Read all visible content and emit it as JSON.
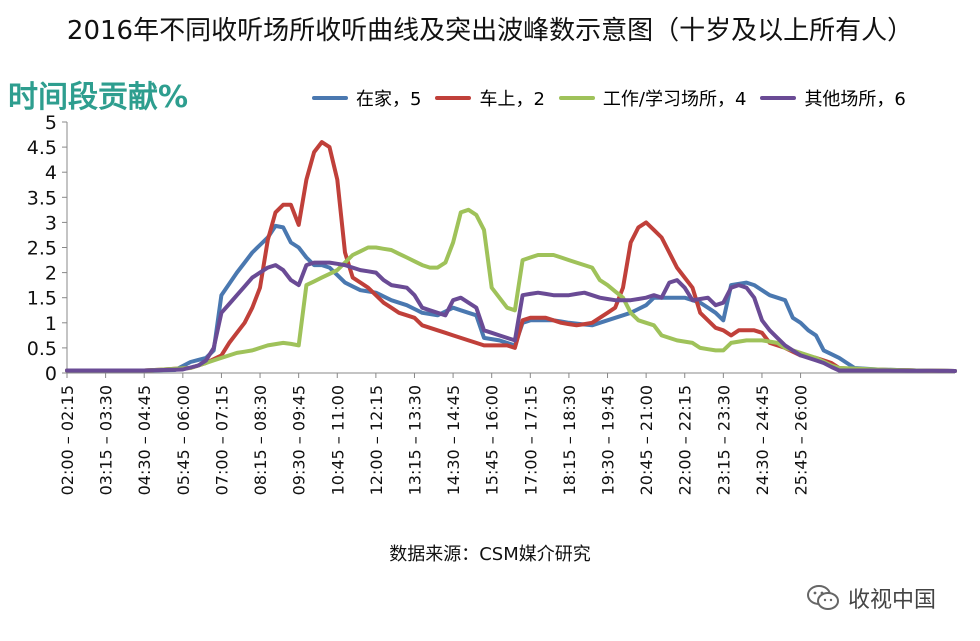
{
  "title": "2016年不同收听场所收听曲线及突出波峰数示意图（十岁及以上所有人）",
  "source": "数据来源：CSM媒介研究",
  "watermark": {
    "text": "收视中国",
    "icon": "wechat-icon"
  },
  "chart_data": {
    "type": "line",
    "title": "2016年不同收听场所收听曲线及突出波峰数示意图（十岁及以上所有人）",
    "ylabel": "时间段贡献%",
    "xlabel": "",
    "ylim": [
      0,
      5
    ],
    "yticks": [
      "0",
      "0.5",
      "1",
      "1.5",
      "2",
      "2.5",
      "3",
      "3.5",
      "4",
      "4.5",
      "5"
    ],
    "grid": false,
    "legend_position": "top",
    "x_tick_labels": [
      "02:00 – 02:15",
      "03:15 – 03:30",
      "04:30 – 04:45",
      "05:45 – 06:00",
      "07:00 – 07:15",
      "08:15 – 08:30",
      "09:30 – 09:45",
      "10:45 – 11:00",
      "12:00 – 12:15",
      "13:15 – 13:30",
      "14:30 – 14:45",
      "15:45 – 16:00",
      "17:00 – 17:15",
      "18:15 – 18:30",
      "19:30 – 19:45",
      "20:45 – 21:00",
      "22:00 – 22:15",
      "23:15 – 23:30",
      "24:30 – 24:45",
      "25:45 – 26:00"
    ],
    "x_tick_step": 5,
    "n_points": 96,
    "series": [
      {
        "name": "在家，5",
        "color": "#4a78b0",
        "anchors": [
          [
            0,
            0.05
          ],
          [
            5,
            0.05
          ],
          [
            10,
            0.05
          ],
          [
            14,
            0.06
          ],
          [
            16,
            0.22
          ],
          [
            18,
            0.3
          ],
          [
            19,
            0.45
          ],
          [
            20,
            1.55
          ],
          [
            22,
            2.0
          ],
          [
            24,
            2.4
          ],
          [
            26,
            2.7
          ],
          [
            27,
            2.93
          ],
          [
            28,
            2.9
          ],
          [
            29,
            2.6
          ],
          [
            30,
            2.5
          ],
          [
            31,
            2.3
          ],
          [
            32,
            2.15
          ],
          [
            33,
            2.15
          ],
          [
            34,
            2.1
          ],
          [
            35,
            1.95
          ],
          [
            36,
            1.8
          ],
          [
            38,
            1.65
          ],
          [
            40,
            1.6
          ],
          [
            42,
            1.45
          ],
          [
            44,
            1.35
          ],
          [
            46,
            1.2
          ],
          [
            48,
            1.15
          ],
          [
            50,
            1.3
          ],
          [
            51,
            1.25
          ],
          [
            53,
            1.15
          ],
          [
            54,
            0.7
          ],
          [
            56,
            0.65
          ],
          [
            58,
            0.55
          ],
          [
            59,
            1.0
          ],
          [
            60,
            1.05
          ],
          [
            63,
            1.05
          ],
          [
            65,
            1.0
          ],
          [
            68,
            0.95
          ],
          [
            70,
            1.05
          ],
          [
            73,
            1.2
          ],
          [
            75,
            1.35
          ],
          [
            76,
            1.5
          ],
          [
            78,
            1.5
          ],
          [
            80,
            1.5
          ],
          [
            82,
            1.4
          ],
          [
            83,
            1.3
          ],
          [
            84,
            1.2
          ],
          [
            85,
            1.05
          ],
          [
            86,
            1.75
          ],
          [
            88,
            1.8
          ],
          [
            89,
            1.75
          ],
          [
            90,
            1.65
          ],
          [
            91,
            1.55
          ],
          [
            93,
            1.45
          ],
          [
            94,
            1.1
          ],
          [
            95,
            1.0
          ],
          [
            96,
            0.85
          ],
          [
            97,
            0.75
          ],
          [
            98,
            0.45
          ],
          [
            100,
            0.3
          ],
          [
            101,
            0.2
          ],
          [
            102,
            0.1
          ],
          [
            105,
            0.07
          ],
          [
            110,
            0.05
          ],
          [
            115,
            0.04
          ]
        ]
      },
      {
        "name": "车上，2",
        "color": "#c0403a",
        "anchors": [
          [
            0,
            0.05
          ],
          [
            10,
            0.05
          ],
          [
            16,
            0.1
          ],
          [
            18,
            0.2
          ],
          [
            20,
            0.35
          ],
          [
            21,
            0.6
          ],
          [
            23,
            1.0
          ],
          [
            24,
            1.3
          ],
          [
            25,
            1.7
          ],
          [
            26,
            2.65
          ],
          [
            27,
            3.2
          ],
          [
            28,
            3.35
          ],
          [
            29,
            3.35
          ],
          [
            30,
            2.95
          ],
          [
            31,
            3.85
          ],
          [
            32,
            4.4
          ],
          [
            33,
            4.6
          ],
          [
            34,
            4.5
          ],
          [
            35,
            3.85
          ],
          [
            36,
            2.4
          ],
          [
            37,
            1.9
          ],
          [
            39,
            1.7
          ],
          [
            41,
            1.4
          ],
          [
            43,
            1.2
          ],
          [
            45,
            1.1
          ],
          [
            46,
            0.95
          ],
          [
            48,
            0.85
          ],
          [
            50,
            0.75
          ],
          [
            52,
            0.65
          ],
          [
            54,
            0.55
          ],
          [
            57,
            0.55
          ],
          [
            58,
            0.5
          ],
          [
            59,
            1.05
          ],
          [
            60,
            1.1
          ],
          [
            62,
            1.1
          ],
          [
            64,
            1.0
          ],
          [
            66,
            0.95
          ],
          [
            68,
            1.0
          ],
          [
            70,
            1.2
          ],
          [
            71,
            1.3
          ],
          [
            72,
            1.7
          ],
          [
            73,
            2.6
          ],
          [
            74,
            2.9
          ],
          [
            75,
            3.0
          ],
          [
            76,
            2.85
          ],
          [
            77,
            2.7
          ],
          [
            78,
            2.4
          ],
          [
            79,
            2.1
          ],
          [
            80,
            1.9
          ],
          [
            81,
            1.7
          ],
          [
            82,
            1.2
          ],
          [
            83,
            1.05
          ],
          [
            84,
            0.9
          ],
          [
            85,
            0.85
          ],
          [
            86,
            0.75
          ],
          [
            87,
            0.85
          ],
          [
            89,
            0.85
          ],
          [
            90,
            0.8
          ],
          [
            91,
            0.6
          ],
          [
            93,
            0.5
          ],
          [
            95,
            0.35
          ],
          [
            97,
            0.3
          ],
          [
            99,
            0.2
          ],
          [
            100,
            0.1
          ],
          [
            103,
            0.07
          ],
          [
            110,
            0.05
          ],
          [
            115,
            0.04
          ]
        ]
      },
      {
        "name": "工作/学习场所，4",
        "color": "#9fc25a",
        "anchors": [
          [
            0,
            0.05
          ],
          [
            10,
            0.05
          ],
          [
            16,
            0.1
          ],
          [
            18,
            0.2
          ],
          [
            20,
            0.3
          ],
          [
            22,
            0.4
          ],
          [
            24,
            0.45
          ],
          [
            26,
            0.55
          ],
          [
            28,
            0.6
          ],
          [
            29,
            0.58
          ],
          [
            30,
            0.55
          ],
          [
            31,
            1.75
          ],
          [
            33,
            1.9
          ],
          [
            35,
            2.05
          ],
          [
            37,
            2.35
          ],
          [
            39,
            2.5
          ],
          [
            40,
            2.5
          ],
          [
            42,
            2.45
          ],
          [
            44,
            2.3
          ],
          [
            46,
            2.15
          ],
          [
            47,
            2.1
          ],
          [
            48,
            2.1
          ],
          [
            49,
            2.2
          ],
          [
            50,
            2.6
          ],
          [
            51,
            3.2
          ],
          [
            52,
            3.25
          ],
          [
            53,
            3.15
          ],
          [
            54,
            2.85
          ],
          [
            55,
            1.7
          ],
          [
            56,
            1.5
          ],
          [
            57,
            1.3
          ],
          [
            58,
            1.25
          ],
          [
            59,
            2.25
          ],
          [
            61,
            2.35
          ],
          [
            63,
            2.35
          ],
          [
            65,
            2.25
          ],
          [
            67,
            2.15
          ],
          [
            68,
            2.1
          ],
          [
            69,
            1.85
          ],
          [
            70,
            1.75
          ],
          [
            72,
            1.5
          ],
          [
            73,
            1.2
          ],
          [
            74,
            1.05
          ],
          [
            76,
            0.95
          ],
          [
            77,
            0.75
          ],
          [
            79,
            0.65
          ],
          [
            81,
            0.6
          ],
          [
            82,
            0.5
          ],
          [
            84,
            0.45
          ],
          [
            85,
            0.45
          ],
          [
            86,
            0.6
          ],
          [
            88,
            0.65
          ],
          [
            90,
            0.65
          ],
          [
            92,
            0.6
          ],
          [
            93,
            0.5
          ],
          [
            95,
            0.4
          ],
          [
            97,
            0.3
          ],
          [
            99,
            0.15
          ],
          [
            100,
            0.1
          ],
          [
            105,
            0.07
          ],
          [
            110,
            0.05
          ],
          [
            115,
            0.04
          ]
        ]
      },
      {
        "name": "其他场所，6",
        "color": "#6a4b95",
        "anchors": [
          [
            0,
            0.05
          ],
          [
            10,
            0.05
          ],
          [
            15,
            0.07
          ],
          [
            17,
            0.15
          ],
          [
            18,
            0.25
          ],
          [
            19,
            0.5
          ],
          [
            20,
            1.2
          ],
          [
            22,
            1.55
          ],
          [
            24,
            1.9
          ],
          [
            26,
            2.1
          ],
          [
            27,
            2.15
          ],
          [
            28,
            2.05
          ],
          [
            29,
            1.85
          ],
          [
            30,
            1.75
          ],
          [
            31,
            2.15
          ],
          [
            32,
            2.2
          ],
          [
            34,
            2.2
          ],
          [
            36,
            2.15
          ],
          [
            38,
            2.05
          ],
          [
            40,
            2.0
          ],
          [
            41,
            1.85
          ],
          [
            42,
            1.75
          ],
          [
            44,
            1.7
          ],
          [
            45,
            1.55
          ],
          [
            46,
            1.3
          ],
          [
            48,
            1.2
          ],
          [
            49,
            1.15
          ],
          [
            50,
            1.45
          ],
          [
            51,
            1.5
          ],
          [
            53,
            1.3
          ],
          [
            54,
            0.85
          ],
          [
            56,
            0.75
          ],
          [
            58,
            0.65
          ],
          [
            59,
            1.55
          ],
          [
            61,
            1.6
          ],
          [
            63,
            1.55
          ],
          [
            65,
            1.55
          ],
          [
            67,
            1.6
          ],
          [
            69,
            1.5
          ],
          [
            71,
            1.45
          ],
          [
            73,
            1.45
          ],
          [
            75,
            1.5
          ],
          [
            76,
            1.55
          ],
          [
            77,
            1.5
          ],
          [
            78,
            1.8
          ],
          [
            79,
            1.85
          ],
          [
            80,
            1.7
          ],
          [
            81,
            1.45
          ],
          [
            83,
            1.5
          ],
          [
            84,
            1.35
          ],
          [
            85,
            1.4
          ],
          [
            86,
            1.7
          ],
          [
            87,
            1.75
          ],
          [
            88,
            1.7
          ],
          [
            89,
            1.5
          ],
          [
            90,
            1.05
          ],
          [
            91,
            0.85
          ],
          [
            93,
            0.55
          ],
          [
            95,
            0.35
          ],
          [
            97,
            0.25
          ],
          [
            98,
            0.2
          ],
          [
            99,
            0.12
          ],
          [
            100,
            0.05
          ],
          [
            105,
            0.05
          ],
          [
            115,
            0.04
          ]
        ]
      }
    ]
  }
}
